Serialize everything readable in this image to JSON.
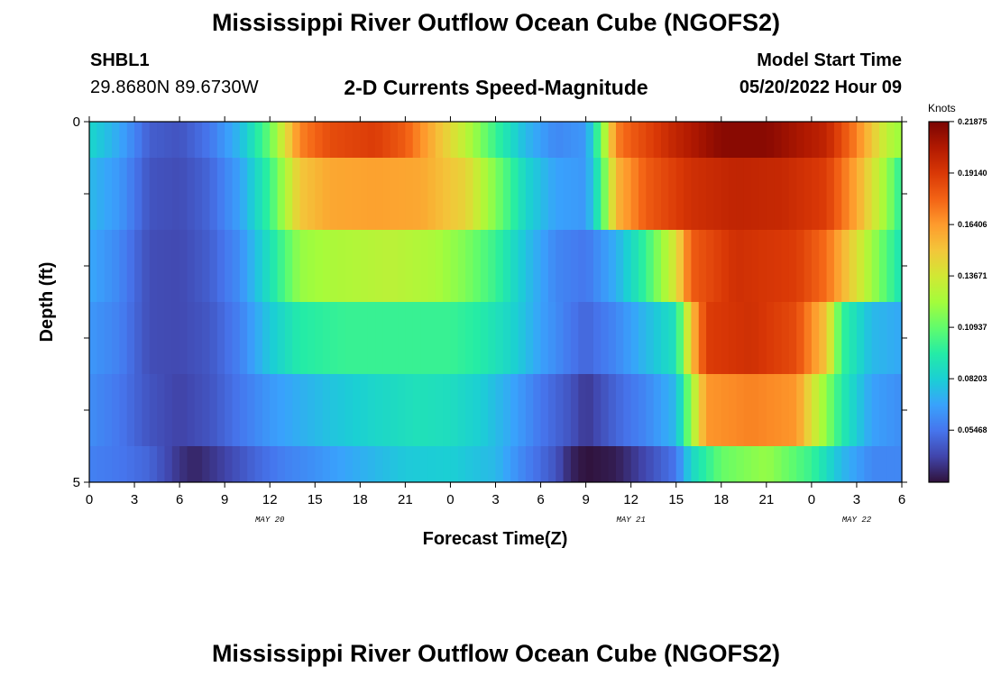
{
  "header": {
    "title": "Mississippi River Outflow Ocean Cube (NGOFS2)",
    "station": "SHBL1",
    "coords": "29.8680N  89.6730W",
    "plot_title": "2-D Currents Speed-Magnitude",
    "model_start_label": "Model Start Time",
    "model_start_value": "05/20/2022 Hour 09"
  },
  "footer": {
    "title": "Mississippi River Outflow Ocean Cube (NGOFS2)"
  },
  "colors": {
    "stops": [
      "#30123b",
      "#4145ab",
      "#4675ed",
      "#39a2fc",
      "#1bcfd4",
      "#24eca6",
      "#61fc6c",
      "#a4fc3b",
      "#d1e834",
      "#f3c63a",
      "#fe9b2d",
      "#f36315",
      "#d93806",
      "#b11901",
      "#7a0402"
    ]
  },
  "chart_data": {
    "type": "heatmap",
    "xlabel": "Forecast Time(Z)",
    "ylabel": "Depth (ft)",
    "x_tick_labels": [
      "0",
      "3",
      "6",
      "9",
      "12",
      "15",
      "18",
      "21",
      "0",
      "3",
      "6",
      "9",
      "12",
      "15",
      "18",
      "21",
      "0",
      "3",
      "6"
    ],
    "date_labels": [
      {
        "text": "MAY 20",
        "at_hour": 12
      },
      {
        "text": "MAY 21",
        "at_hour": 36
      },
      {
        "text": "MAY 22",
        "at_hour": 51
      }
    ],
    "x_range_hours": [
      0,
      54
    ],
    "y_tick_labels": [
      {
        "value": 0,
        "label": "0"
      },
      {
        "value": 5,
        "label": "5"
      }
    ],
    "y_range": [
      0,
      5
    ],
    "colorbar": {
      "unit": "Knots",
      "range": [
        0.027,
        0.2187
      ],
      "tick_values": [
        0.21875,
        0.1914,
        0.164,
        0.1367,
        0.10937,
        0.08203,
        0.05468
      ],
      "tick_labels": [
        "0.21875",
        "0.19140",
        "0.16406",
        "0.13671",
        "0.10937",
        "0.08203",
        "0.05468"
      ]
    },
    "layers": [
      {
        "depth_top": 0.0,
        "depth_bottom": 0.5,
        "values": [
          [
            0,
            0.085
          ],
          [
            2,
            0.07
          ],
          [
            4,
            0.048
          ],
          [
            6,
            0.045
          ],
          [
            8,
            0.055
          ],
          [
            10,
            0.075
          ],
          [
            12,
            0.11
          ],
          [
            14,
            0.17
          ],
          [
            16,
            0.185
          ],
          [
            19,
            0.19
          ],
          [
            21,
            0.18
          ],
          [
            23,
            0.155
          ],
          [
            25,
            0.13
          ],
          [
            27,
            0.1
          ],
          [
            29,
            0.075
          ],
          [
            31,
            0.06
          ],
          [
            33,
            0.065
          ],
          [
            34,
            0.11
          ],
          [
            35,
            0.17
          ],
          [
            36,
            0.18
          ],
          [
            39,
            0.2
          ],
          [
            42,
            0.215
          ],
          [
            45,
            0.215
          ],
          [
            49,
            0.2
          ],
          [
            51,
            0.17
          ],
          [
            53,
            0.13
          ],
          [
            54,
            0.12
          ]
        ]
      },
      {
        "depth_top": 0.5,
        "depth_bottom": 1.5,
        "values": [
          [
            0,
            0.075
          ],
          [
            2,
            0.065
          ],
          [
            4,
            0.045
          ],
          [
            6,
            0.043
          ],
          [
            8,
            0.05
          ],
          [
            10,
            0.068
          ],
          [
            12,
            0.1
          ],
          [
            14,
            0.15
          ],
          [
            16,
            0.16
          ],
          [
            19,
            0.162
          ],
          [
            22,
            0.16
          ],
          [
            25,
            0.145
          ],
          [
            27,
            0.115
          ],
          [
            29,
            0.085
          ],
          [
            31,
            0.068
          ],
          [
            33,
            0.065
          ],
          [
            34,
            0.1
          ],
          [
            35,
            0.155
          ],
          [
            37,
            0.18
          ],
          [
            40,
            0.195
          ],
          [
            43,
            0.2
          ],
          [
            46,
            0.198
          ],
          [
            49,
            0.19
          ],
          [
            51,
            0.16
          ],
          [
            53,
            0.12
          ],
          [
            54,
            0.095
          ]
        ]
      },
      {
        "depth_top": 1.5,
        "depth_bottom": 2.5,
        "values": [
          [
            0,
            0.07
          ],
          [
            2,
            0.06
          ],
          [
            4,
            0.043
          ],
          [
            6,
            0.042
          ],
          [
            8,
            0.048
          ],
          [
            10,
            0.062
          ],
          [
            12,
            0.09
          ],
          [
            14,
            0.12
          ],
          [
            16,
            0.125
          ],
          [
            20,
            0.13
          ],
          [
            23,
            0.125
          ],
          [
            25,
            0.115
          ],
          [
            27,
            0.1
          ],
          [
            29,
            0.078
          ],
          [
            31,
            0.06
          ],
          [
            33,
            0.055
          ],
          [
            35,
            0.072
          ],
          [
            37,
            0.1
          ],
          [
            39,
            0.14
          ],
          [
            40,
            0.18
          ],
          [
            43,
            0.195
          ],
          [
            47,
            0.19
          ],
          [
            49,
            0.175
          ],
          [
            51,
            0.14
          ],
          [
            53,
            0.105
          ],
          [
            54,
            0.09
          ]
        ]
      },
      {
        "depth_top": 2.5,
        "depth_bottom": 3.5,
        "values": [
          [
            0,
            0.065
          ],
          [
            2,
            0.058
          ],
          [
            4,
            0.043
          ],
          [
            6,
            0.042
          ],
          [
            8,
            0.046
          ],
          [
            10,
            0.058
          ],
          [
            12,
            0.08
          ],
          [
            14,
            0.095
          ],
          [
            17,
            0.1
          ],
          [
            21,
            0.1
          ],
          [
            24,
            0.1
          ],
          [
            26,
            0.095
          ],
          [
            28,
            0.085
          ],
          [
            30,
            0.068
          ],
          [
            32,
            0.055
          ],
          [
            33,
            0.05
          ],
          [
            35,
            0.06
          ],
          [
            37,
            0.075
          ],
          [
            39,
            0.09
          ],
          [
            40,
            0.15
          ],
          [
            41,
            0.19
          ],
          [
            44,
            0.195
          ],
          [
            47,
            0.185
          ],
          [
            49,
            0.15
          ],
          [
            50,
            0.1
          ],
          [
            52,
            0.075
          ],
          [
            54,
            0.07
          ]
        ]
      },
      {
        "depth_top": 3.5,
        "depth_bottom": 4.5,
        "values": [
          [
            0,
            0.062
          ],
          [
            2,
            0.055
          ],
          [
            4,
            0.045
          ],
          [
            6,
            0.04
          ],
          [
            8,
            0.045
          ],
          [
            10,
            0.055
          ],
          [
            12,
            0.065
          ],
          [
            14,
            0.072
          ],
          [
            16,
            0.078
          ],
          [
            19,
            0.085
          ],
          [
            22,
            0.09
          ],
          [
            24,
            0.088
          ],
          [
            26,
            0.082
          ],
          [
            28,
            0.07
          ],
          [
            30,
            0.055
          ],
          [
            32,
            0.045
          ],
          [
            33,
            0.037
          ],
          [
            35,
            0.05
          ],
          [
            37,
            0.06
          ],
          [
            39,
            0.075
          ],
          [
            40,
            0.12
          ],
          [
            41,
            0.165
          ],
          [
            44,
            0.17
          ],
          [
            47,
            0.165
          ],
          [
            48,
            0.14
          ],
          [
            50,
            0.095
          ],
          [
            52,
            0.068
          ],
          [
            54,
            0.062
          ]
        ]
      },
      {
        "depth_top": 4.5,
        "depth_bottom": 5.0,
        "values": [
          [
            0,
            0.058
          ],
          [
            2,
            0.055
          ],
          [
            4,
            0.05
          ],
          [
            6,
            0.036
          ],
          [
            7,
            0.032
          ],
          [
            9,
            0.04
          ],
          [
            11,
            0.05
          ],
          [
            13,
            0.058
          ],
          [
            15,
            0.063
          ],
          [
            18,
            0.072
          ],
          [
            21,
            0.08
          ],
          [
            24,
            0.082
          ],
          [
            27,
            0.075
          ],
          [
            29,
            0.058
          ],
          [
            31,
            0.045
          ],
          [
            32,
            0.032
          ],
          [
            33,
            0.027
          ],
          [
            35,
            0.03
          ],
          [
            37,
            0.042
          ],
          [
            39,
            0.055
          ],
          [
            40,
            0.085
          ],
          [
            42,
            0.11
          ],
          [
            45,
            0.12
          ],
          [
            48,
            0.1
          ],
          [
            50,
            0.075
          ],
          [
            52,
            0.06
          ],
          [
            54,
            0.06
          ]
        ]
      }
    ]
  }
}
